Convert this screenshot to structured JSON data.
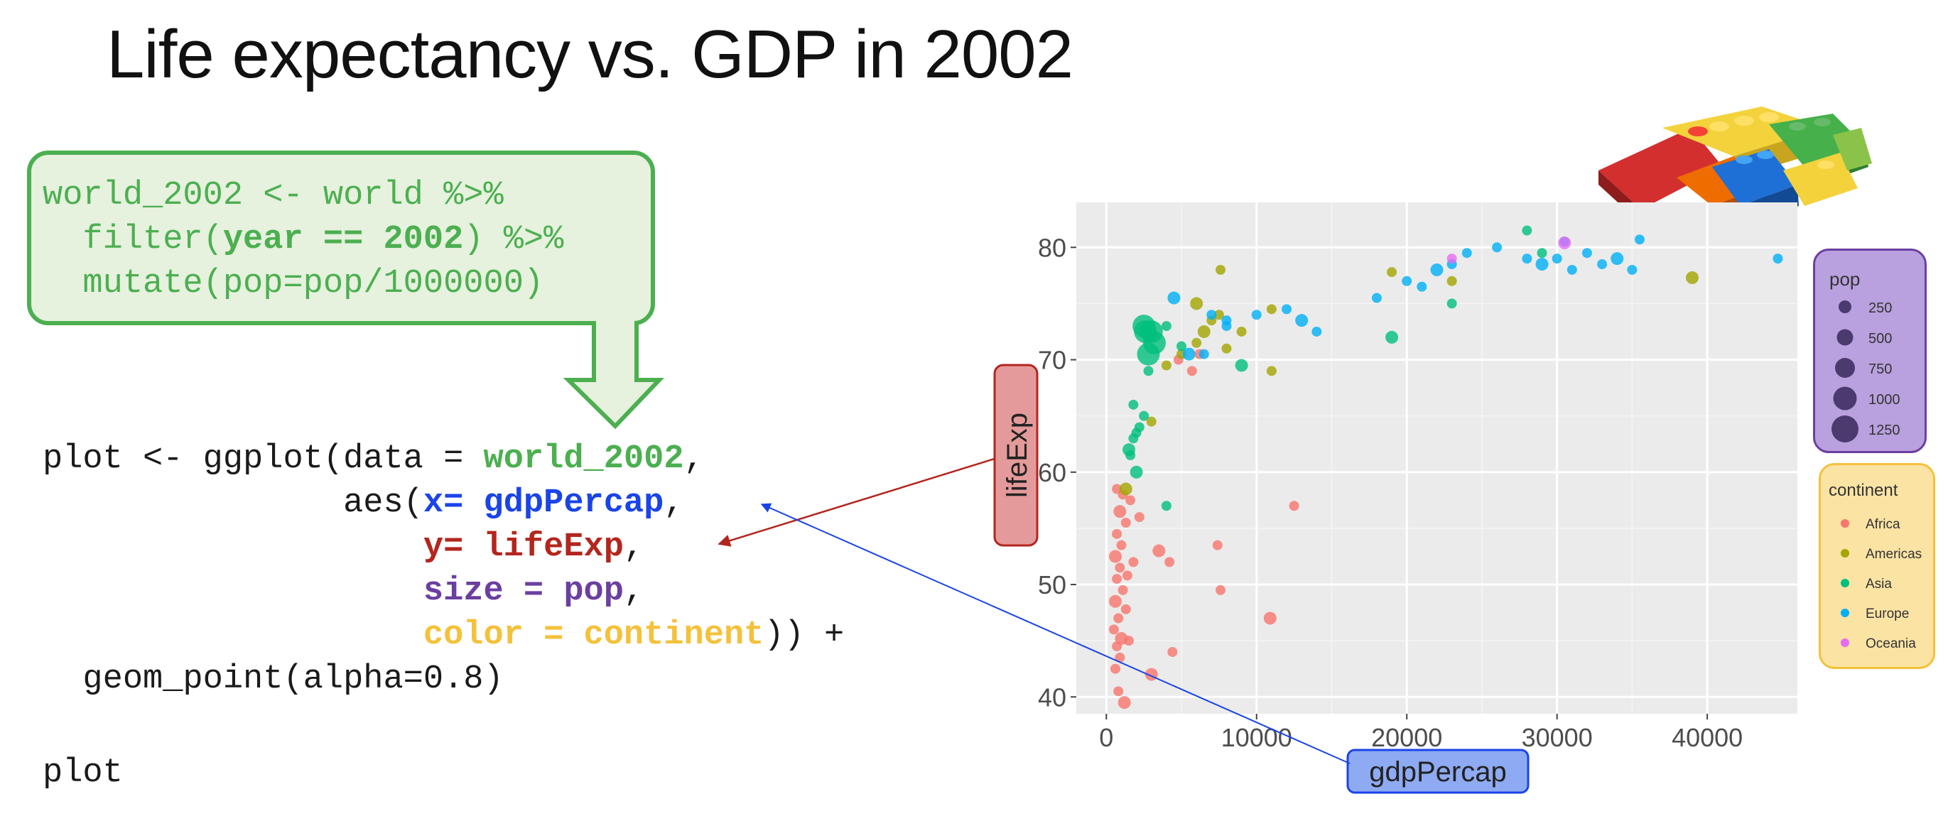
{
  "slide": {
    "title": "Life expectancy vs. GDP in 2002"
  },
  "callout": {
    "line1": "world_2002 <- world %>%",
    "line2_pre": "  filter(",
    "line2_bold": "year == 2002",
    "line2_post": ") %>%",
    "line3": "  mutate(pop=pop/1000000)"
  },
  "code": {
    "l1_pre": "plot <- ggplot(data = ",
    "l1_arg": "world_2002",
    "l1_post": ",",
    "l2_pre": "               aes(",
    "l2_arg": "x= gdpPercap",
    "l2_post": ",",
    "l3_pre": "                   ",
    "l3_arg": "y= lifeExp",
    "l3_post": ",",
    "l4_pre": "                   ",
    "l4_arg": "size = pop",
    "l4_post": ",",
    "l5_pre": "                   ",
    "l5_arg": "color = continent",
    "l5_post": ")) +",
    "l6": "  geom_point(alpha=0.8)",
    "l7": "plot"
  },
  "labels": {
    "y_callout": "lifeExp",
    "x_callout": "gdpPercap"
  },
  "colors": {
    "green": "#4caf50",
    "blue": "#1a44e8",
    "red": "#b3261e",
    "purple": "#6b3fa0",
    "yellow": "#f4c13a"
  },
  "chart_data": {
    "type": "scatter",
    "xlim": [
      -2000,
      46000
    ],
    "ylim": [
      38.5,
      84
    ],
    "x_ticks": [
      0,
      10000,
      20000,
      30000,
      40000
    ],
    "y_ticks": [
      40,
      50,
      60,
      70,
      80
    ],
    "grid": true,
    "legend_position": "right",
    "size_legend": {
      "title": "pop",
      "values": [
        250,
        500,
        750,
        1000,
        1250
      ]
    },
    "color_legend": {
      "title": "continent",
      "entries": [
        {
          "name": "Africa",
          "color": "#f8766d"
        },
        {
          "name": "Americas",
          "color": "#a3a500"
        },
        {
          "name": "Asia",
          "color": "#00bf7d"
        },
        {
          "name": "Europe",
          "color": "#00b0f6"
        },
        {
          "name": "Oceania",
          "color": "#e76bf3"
        }
      ]
    },
    "series": [
      {
        "name": "Africa",
        "points": [
          [
            1200,
            39.5
          ],
          [
            800,
            40.5
          ],
          [
            600,
            42.5
          ],
          [
            900,
            43.5
          ],
          [
            700,
            44.5
          ],
          [
            1000,
            45.2
          ],
          [
            500,
            46
          ],
          [
            1500,
            45
          ],
          [
            800,
            47
          ],
          [
            1300,
            47.8
          ],
          [
            600,
            48.5
          ],
          [
            1100,
            49.5
          ],
          [
            700,
            50.5
          ],
          [
            1400,
            50.8
          ],
          [
            900,
            51.5
          ],
          [
            600,
            52.5
          ],
          [
            1800,
            52
          ],
          [
            1000,
            53.5
          ],
          [
            700,
            54.5
          ],
          [
            1300,
            55.5
          ],
          [
            900,
            56.5
          ],
          [
            2200,
            56
          ],
          [
            1600,
            57.5
          ],
          [
            700,
            58.5
          ],
          [
            1100,
            58
          ],
          [
            3500,
            53
          ],
          [
            4200,
            52
          ],
          [
            4400,
            44
          ],
          [
            7600,
            49.5
          ],
          [
            7400,
            53.5
          ],
          [
            10900,
            47
          ],
          [
            12500,
            57
          ],
          [
            5700,
            69
          ],
          [
            6200,
            70.5
          ],
          [
            4800,
            70
          ],
          [
            3000,
            42
          ]
        ]
      },
      {
        "name": "Americas",
        "points": [
          [
            1300,
            58.5
          ],
          [
            3000,
            64.5
          ],
          [
            4000,
            69.5
          ],
          [
            5000,
            70.5
          ],
          [
            6000,
            71.5
          ],
          [
            6500,
            72.5
          ],
          [
            7000,
            73.5
          ],
          [
            7500,
            74
          ],
          [
            8000,
            71
          ],
          [
            9000,
            72.5
          ],
          [
            6000,
            75
          ],
          [
            7600,
            78
          ],
          [
            11000,
            74.5
          ],
          [
            19000,
            77.8
          ],
          [
            23000,
            77
          ],
          [
            39000,
            77.3
          ],
          [
            11000,
            69
          ]
        ]
      },
      {
        "name": "Asia",
        "points": [
          [
            1500,
            62
          ],
          [
            1800,
            63
          ],
          [
            2000,
            63.5
          ],
          [
            2200,
            64
          ],
          [
            1600,
            61.5
          ],
          [
            2000,
            60
          ],
          [
            2500,
            65
          ],
          [
            2800,
            69
          ],
          [
            3000,
            72.5
          ],
          [
            3200,
            71.5
          ],
          [
            2800,
            70.5
          ],
          [
            2500,
            73
          ],
          [
            4000,
            73
          ],
          [
            1800,
            66
          ],
          [
            4000,
            57
          ],
          [
            19000,
            72
          ],
          [
            23000,
            75
          ],
          [
            28000,
            81.5
          ],
          [
            29000,
            79.5
          ],
          [
            5000,
            71.2
          ],
          [
            9000,
            69.5
          ],
          [
            2600,
            72.5
          ]
        ]
      },
      {
        "name": "Europe",
        "points": [
          [
            4500,
            75.5
          ],
          [
            7000,
            74
          ],
          [
            8000,
            73.5
          ],
          [
            10000,
            74
          ],
          [
            12000,
            74.5
          ],
          [
            13000,
            73.5
          ],
          [
            14000,
            72.5
          ],
          [
            18000,
            75.5
          ],
          [
            20000,
            77
          ],
          [
            21000,
            76.5
          ],
          [
            22000,
            78
          ],
          [
            23000,
            78.5
          ],
          [
            24000,
            79.5
          ],
          [
            26000,
            80
          ],
          [
            28000,
            79
          ],
          [
            29000,
            78.5
          ],
          [
            30000,
            79
          ],
          [
            31000,
            78
          ],
          [
            32000,
            79.5
          ],
          [
            33000,
            78.5
          ],
          [
            34000,
            79
          ],
          [
            35000,
            78
          ],
          [
            30500,
            80.5
          ],
          [
            35500,
            80.7
          ],
          [
            44700,
            79
          ],
          [
            5500,
            70.5
          ],
          [
            6500,
            70.5
          ],
          [
            8000,
            73
          ]
        ]
      },
      {
        "name": "Oceania",
        "points": [
          [
            30500,
            80.4
          ],
          [
            23000,
            79
          ]
        ]
      }
    ]
  }
}
